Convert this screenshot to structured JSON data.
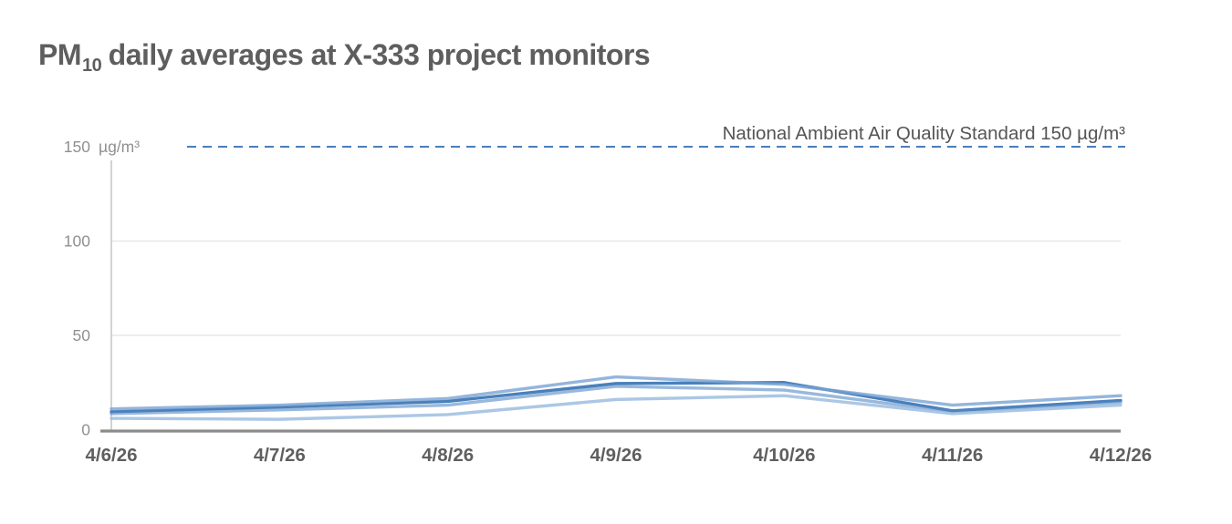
{
  "title": {
    "pm": "PM",
    "sub": "10",
    "rest": " daily averages at X-333 project monitors"
  },
  "standard_line": {
    "label": "National Ambient Air Quality Standard 150 µg/m³",
    "value": 150,
    "color": "#4a7db8"
  },
  "chart_data": {
    "type": "line",
    "title": "PM10 daily averages at X-333 project monitors",
    "x": [
      "4/6/26",
      "4/7/26",
      "4/8/26",
      "4/9/26",
      "4/10/26",
      "4/11/26",
      "4/12/26"
    ],
    "series": [
      {
        "name": "series-1",
        "color": "#3572b4",
        "opacity": 0.9,
        "values": [
          9.5,
          12,
          15,
          24.5,
          25,
          10,
          15.5
        ]
      },
      {
        "name": "series-2",
        "color": "#5589c4",
        "opacity": 0.6,
        "values": [
          8.5,
          10.5,
          13,
          23,
          21,
          9.5,
          14.5
        ]
      },
      {
        "name": "series-3",
        "color": "#79a3d3",
        "opacity": 0.8,
        "values": [
          11,
          13,
          16.5,
          28,
          24,
          13,
          18
        ]
      },
      {
        "name": "series-4",
        "color": "#9cbde0",
        "opacity": 0.85,
        "values": [
          6,
          5.5,
          8,
          16,
          18,
          8.5,
          13
        ]
      }
    ],
    "annotation": "National Ambient Air Quality Standard 150 µg/m³",
    "reference_line": 150,
    "yticks": [
      0,
      50,
      100,
      150
    ],
    "ylim": [
      0,
      150
    ],
    "y_unit": "µg/m³",
    "xlabel": "",
    "ylabel": "",
    "grid": true,
    "legend_position": "none"
  },
  "colors": {
    "grid": "#e7e7e7",
    "axis_x": "#8c8c8c",
    "axis_y": "#c8c8c8",
    "ytick_text": "#909090",
    "xtick_text": "#5f5f5f",
    "title_text": "#5e5e5e",
    "standard_text": "#555555"
  }
}
